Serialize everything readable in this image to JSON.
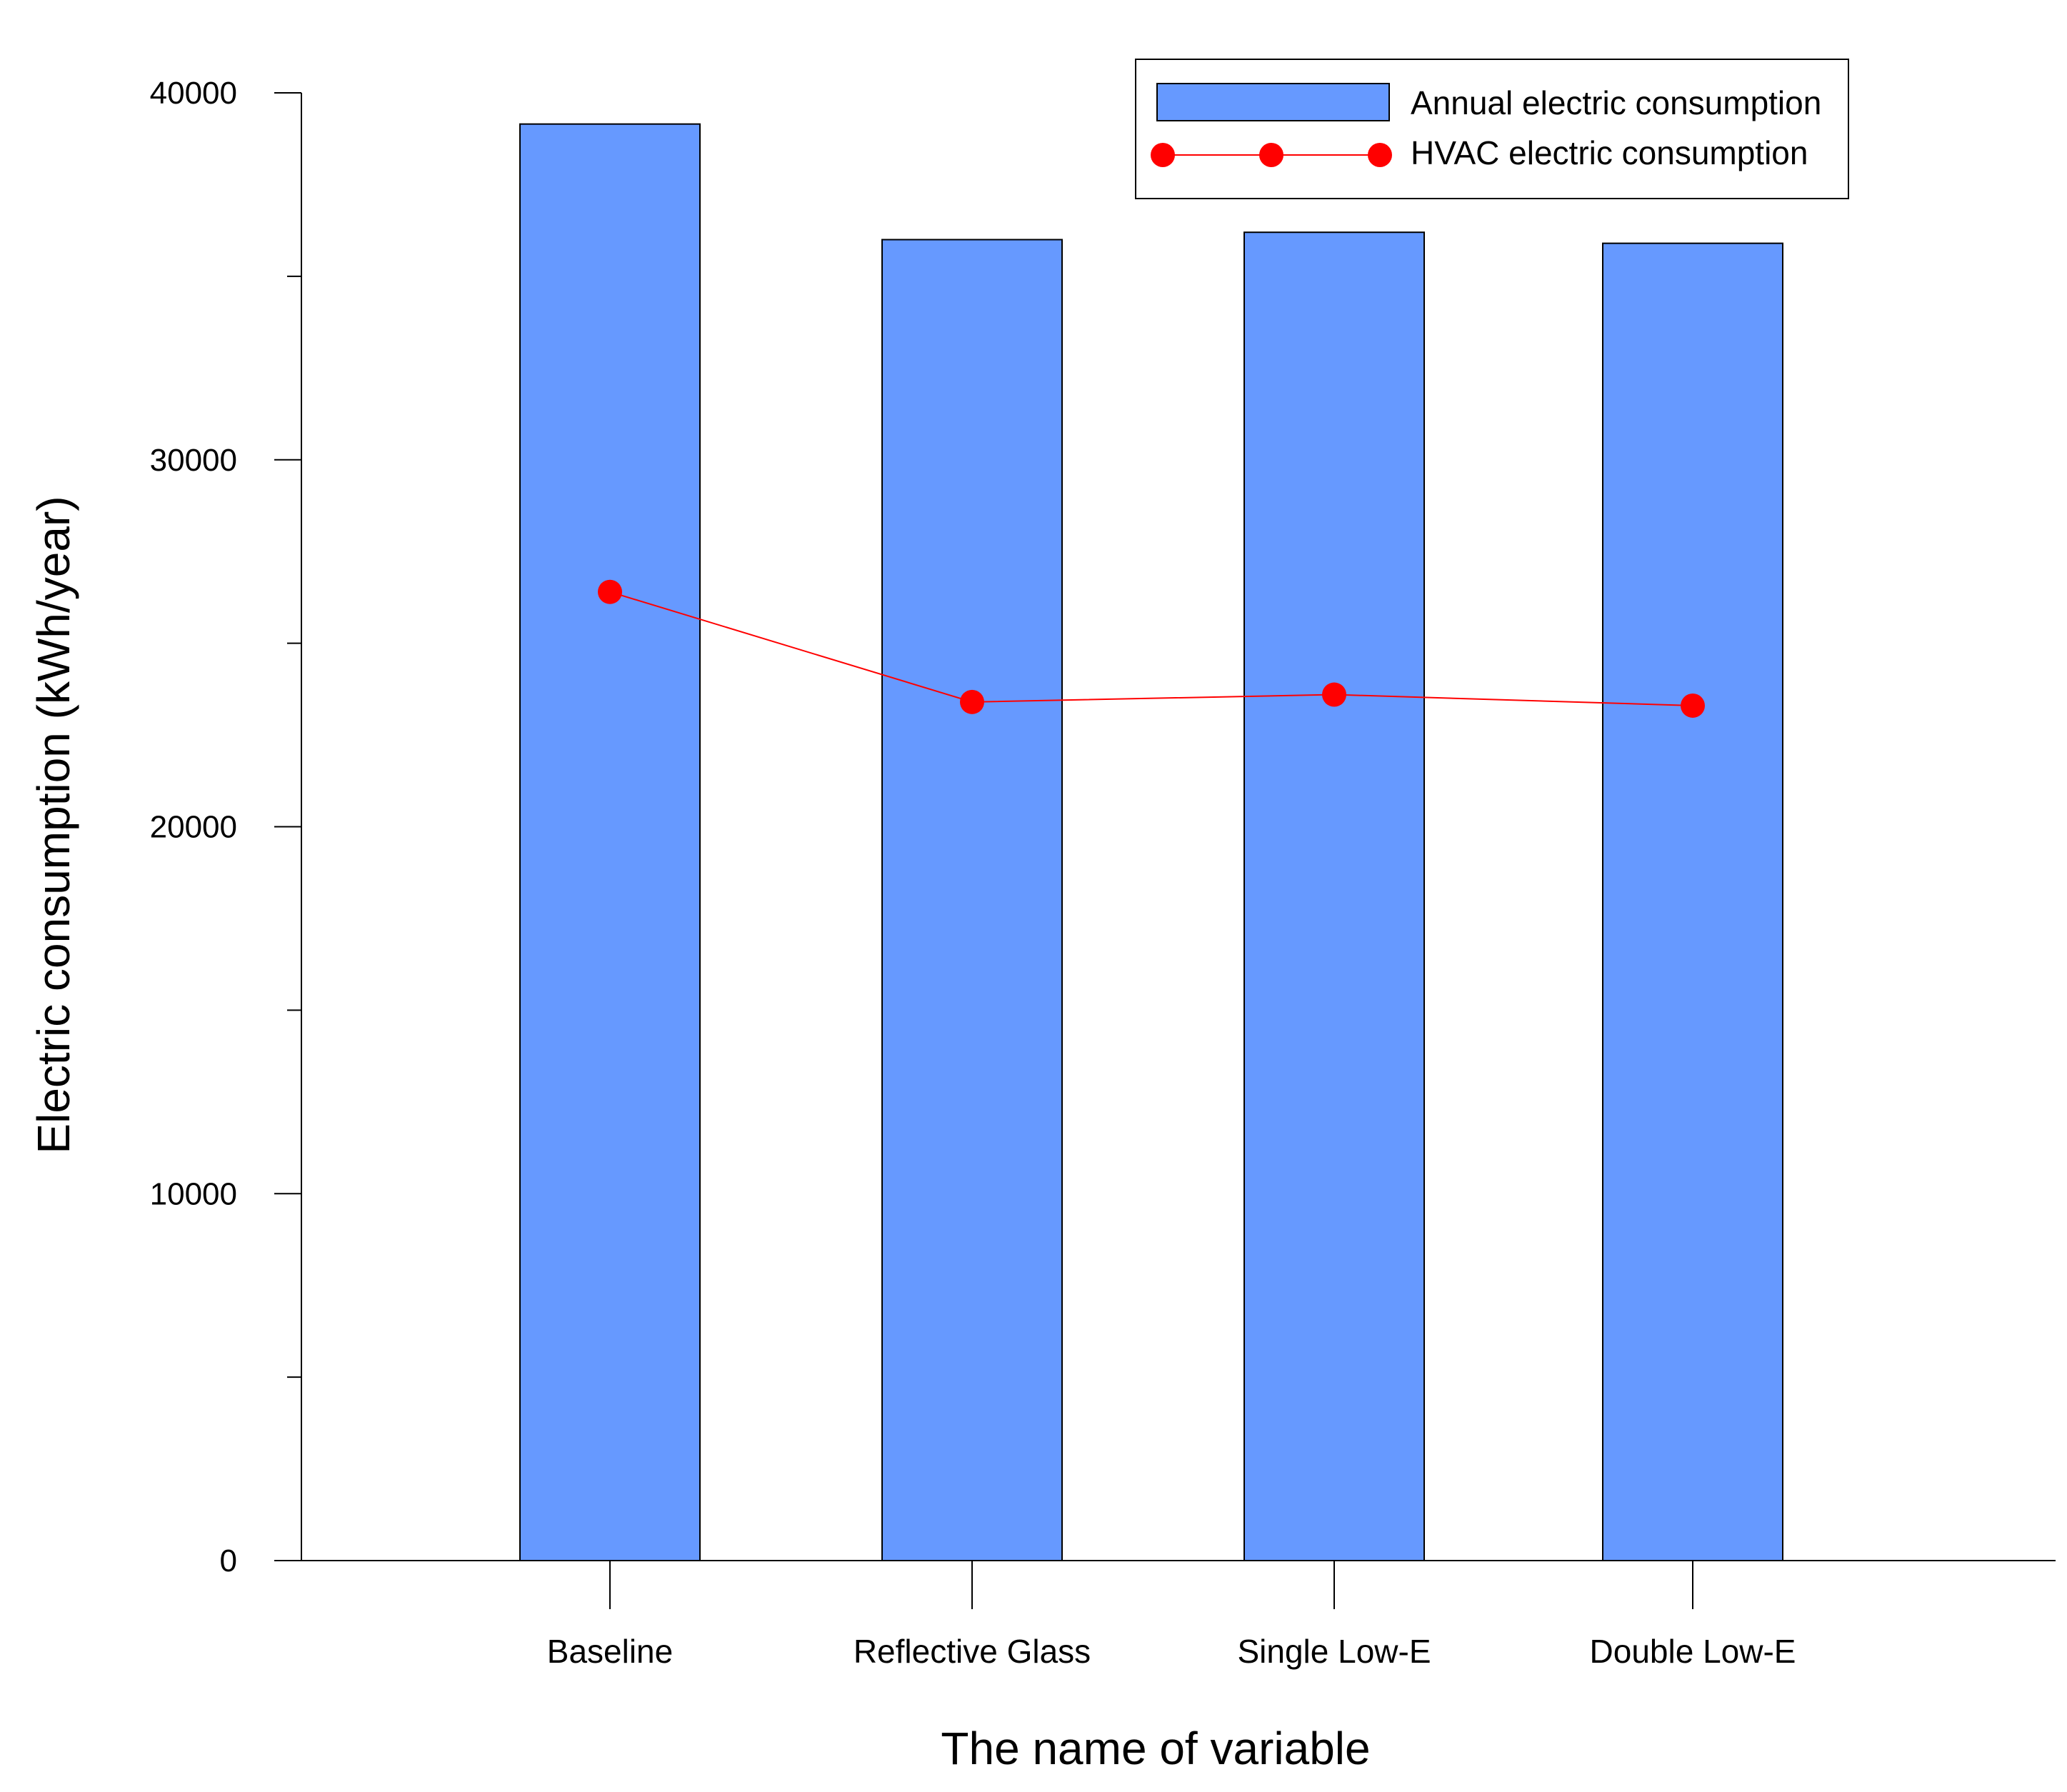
{
  "chart_data": {
    "type": "bar",
    "title": "",
    "xlabel": "The name of variable",
    "ylabel": "Electric consumption (kWh/year)",
    "categories": [
      "Baseline",
      "Reflective Glass",
      "Single Low-E",
      "Double Low-E"
    ],
    "ylim": [
      0,
      40000
    ],
    "y_ticks": [
      0,
      10000,
      20000,
      30000,
      40000
    ],
    "y_minor_ticks": [
      5000,
      15000,
      25000,
      35000
    ],
    "grid": false,
    "legend_position": "top-right",
    "series": [
      {
        "name": "Annual electric consumption",
        "type": "bar",
        "color": "#6699ff",
        "values": [
          39150,
          36000,
          36200,
          35900
        ]
      },
      {
        "name": "HVAC electric consumption",
        "type": "line",
        "color": "#ff0000",
        "marker": "circle",
        "values": [
          26400,
          23400,
          23600,
          23300
        ]
      }
    ]
  }
}
